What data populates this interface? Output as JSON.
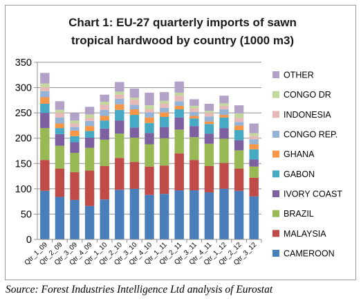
{
  "chart_data": {
    "type": "bar",
    "stacked": true,
    "title": "Chart 1: EU-27 quarterly imports of sawn tropical hardwood by country (1000 m3)",
    "title_lines": [
      "Chart 1: EU-27 quarterly imports of sawn",
      "tropical hardwood by country (1000 m3)"
    ],
    "xlabel": "",
    "ylabel": "",
    "ylim": [
      0,
      350
    ],
    "yticks": [
      0,
      50,
      100,
      150,
      200,
      250,
      300,
      350
    ],
    "grid": true,
    "legend_position": "right",
    "categories": [
      "Qtr_1_09",
      "Qtr_2_09",
      "Qtr_3_09",
      "Qtr_4_09",
      "Qtr_1_10",
      "Qtr_2_10",
      "Qtr_3_10",
      "Qtr_4_10",
      "Qtr_1_11",
      "Qtr_2_11",
      "Qtr_3_11",
      "Qtr_4_11",
      "Qtr_1_12",
      "Qtr_2_12",
      "Qtr_3_12"
    ],
    "series": [
      {
        "name": "CAMEROON",
        "color": "#4a7ebb",
        "values": [
          96,
          84,
          78,
          66,
          79,
          98,
          100,
          88,
          90,
          97,
          97,
          93,
          100,
          96,
          85
        ]
      },
      {
        "name": "MALAYSIA",
        "color": "#be4b48",
        "values": [
          61,
          56,
          55,
          70,
          66,
          63,
          53,
          56,
          56,
          73,
          60,
          52,
          51,
          44,
          37
        ]
      },
      {
        "name": "BRAZIL",
        "color": "#98b954",
        "values": [
          63,
          45,
          38,
          45,
          52,
          48,
          48,
          44,
          54,
          47,
          45,
          44,
          48,
          36,
          22
        ]
      },
      {
        "name": "IVORY COAST",
        "color": "#7d60a0",
        "values": [
          30,
          23,
          21,
          20,
          22,
          26,
          20,
          22,
          22,
          24,
          22,
          20,
          21,
          20,
          14
        ]
      },
      {
        "name": "GABON",
        "color": "#46aac5",
        "values": [
          18,
          12,
          12,
          13,
          16,
          21,
          25,
          20,
          20,
          16,
          15,
          19,
          21,
          20,
          20
        ]
      },
      {
        "name": "GHANA",
        "color": "#f79646",
        "values": [
          13,
          9,
          11,
          10,
          9,
          11,
          11,
          11,
          9,
          7,
          5,
          5,
          5,
          9,
          10
        ]
      },
      {
        "name": "CONGO REP.",
        "color": "#95b3d7",
        "values": [
          12,
          12,
          7,
          10,
          12,
          11,
          9,
          10,
          9,
          9,
          8,
          10,
          11,
          7,
          10
        ]
      },
      {
        "name": "INDONESIA",
        "color": "#e6b9b8",
        "values": [
          8,
          9,
          7,
          6,
          10,
          8,
          10,
          6,
          8,
          11,
          7,
          7,
          7,
          8,
          6
        ]
      },
      {
        "name": "CONGO DR",
        "color": "#c3d69b",
        "values": [
          7,
          6,
          6,
          7,
          6,
          6,
          4,
          8,
          6,
          6,
          5,
          4,
          5,
          9,
          6
        ]
      },
      {
        "name": "OTHER",
        "color": "#b3a2c7",
        "values": [
          21,
          17,
          15,
          15,
          14,
          19,
          18,
          25,
          17,
          22,
          13,
          14,
          15,
          16,
          19
        ]
      }
    ]
  },
  "source": "Source: Forest Industries Intelligence Ltd analysis of Eurostat"
}
